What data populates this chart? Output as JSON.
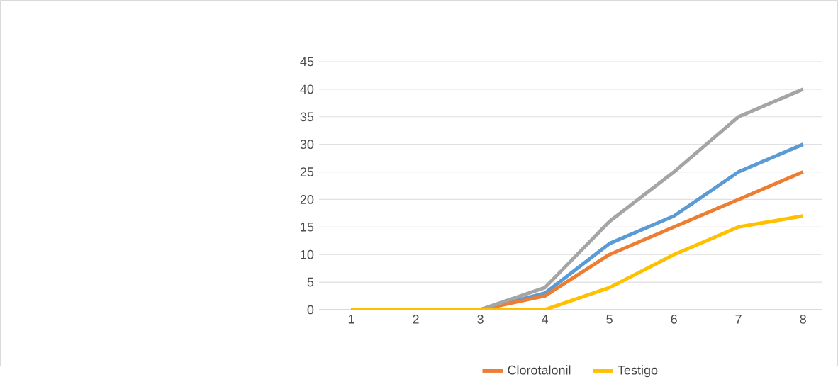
{
  "chart_data": {
    "type": "line",
    "categories": [
      "1",
      "2",
      "3",
      "4",
      "5",
      "6",
      "7",
      "8"
    ],
    "series": [
      {
        "color": "#5b9bd5",
        "values": [
          0,
          0,
          0,
          3,
          12,
          17,
          25,
          30
        ]
      },
      {
        "name": "Clorotalonil",
        "color": "#ed7d31",
        "values": [
          0,
          0,
          0,
          2.5,
          10,
          15,
          20,
          25
        ]
      },
      {
        "color": "#a5a5a5",
        "values": [
          0,
          0,
          0,
          4,
          16,
          25,
          35,
          40
        ]
      },
      {
        "name": "Testigo",
        "color": "#ffc000",
        "values": [
          0,
          0,
          0,
          0,
          4,
          10,
          15,
          17
        ]
      }
    ],
    "ylim": [
      0,
      45
    ],
    "yticks": [
      0,
      5,
      10,
      15,
      20,
      25,
      30,
      35,
      40,
      45
    ],
    "grid": "y",
    "legend": "bottom",
    "marker": "none",
    "line_style": "solid"
  }
}
